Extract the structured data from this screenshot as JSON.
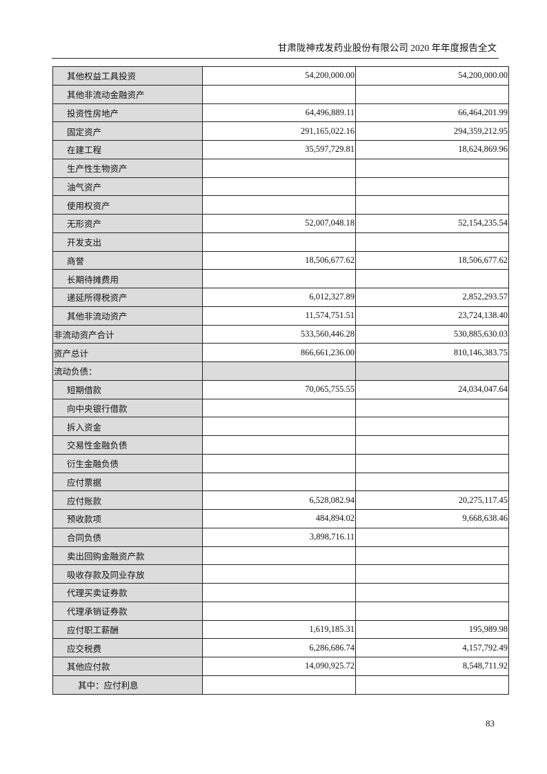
{
  "header": {
    "title": "甘肃陇神戎发药业股份有限公司 2020 年年度报告全文"
  },
  "page_number": "83",
  "table": {
    "rows": [
      {
        "label": "其他权益工具投资",
        "indent": 1,
        "current": "54,200,000.00",
        "previous": "54,200,000.00"
      },
      {
        "label": "其他非流动金融资产",
        "indent": 1,
        "current": "",
        "previous": ""
      },
      {
        "label": "投资性房地产",
        "indent": 1,
        "current": "64,496,889.11",
        "previous": "66,464,201.99"
      },
      {
        "label": "固定资产",
        "indent": 1,
        "current": "291,165,022.16",
        "previous": "294,359,212.95"
      },
      {
        "label": "在建工程",
        "indent": 1,
        "current": "35,597,729.81",
        "previous": "18,624,869.96"
      },
      {
        "label": "生产性生物资产",
        "indent": 1,
        "current": "",
        "previous": ""
      },
      {
        "label": "油气资产",
        "indent": 1,
        "current": "",
        "previous": ""
      },
      {
        "label": "使用权资产",
        "indent": 1,
        "current": "",
        "previous": ""
      },
      {
        "label": "无形资产",
        "indent": 1,
        "current": "52,007,048.18",
        "previous": "52,154,235.54"
      },
      {
        "label": "开发支出",
        "indent": 1,
        "current": "",
        "previous": ""
      },
      {
        "label": "商誉",
        "indent": 1,
        "current": "18,506,677.62",
        "previous": "18,506,677.62"
      },
      {
        "label": "长期待摊费用",
        "indent": 1,
        "current": "",
        "previous": ""
      },
      {
        "label": "递延所得税资产",
        "indent": 1,
        "current": "6,012,327.89",
        "previous": "2,852,293.57"
      },
      {
        "label": "其他非流动资产",
        "indent": 1,
        "current": "11,574,751.51",
        "previous": "23,724,138.40"
      },
      {
        "label": "非流动资产合计",
        "indent": 0,
        "current": "533,560,446.28",
        "previous": "530,885,630.03"
      },
      {
        "label": "资产总计",
        "indent": 0,
        "current": "866,661,236.00",
        "previous": "810,146,383.75"
      },
      {
        "label": "流动负债：",
        "indent": 0,
        "current": "",
        "previous": "",
        "section": true
      },
      {
        "label": "短期借款",
        "indent": 1,
        "current": "70,065,755.55",
        "previous": "24,034,047.64"
      },
      {
        "label": "向中央银行借款",
        "indent": 1,
        "current": "",
        "previous": ""
      },
      {
        "label": "拆入资金",
        "indent": 1,
        "current": "",
        "previous": ""
      },
      {
        "label": "交易性金融负债",
        "indent": 1,
        "current": "",
        "previous": ""
      },
      {
        "label": "衍生金融负债",
        "indent": 1,
        "current": "",
        "previous": ""
      },
      {
        "label": "应付票据",
        "indent": 1,
        "current": "",
        "previous": ""
      },
      {
        "label": "应付账款",
        "indent": 1,
        "current": "6,528,082.94",
        "previous": "20,275,117.45"
      },
      {
        "label": "预收款项",
        "indent": 1,
        "current": "484,894.02",
        "previous": "9,668,638.46"
      },
      {
        "label": "合同负债",
        "indent": 1,
        "current": "3,898,716.11",
        "previous": ""
      },
      {
        "label": "卖出回购金融资产款",
        "indent": 1,
        "current": "",
        "previous": ""
      },
      {
        "label": "吸收存款及同业存放",
        "indent": 1,
        "current": "",
        "previous": ""
      },
      {
        "label": "代理买卖证券款",
        "indent": 1,
        "current": "",
        "previous": ""
      },
      {
        "label": "代理承销证券款",
        "indent": 1,
        "current": "",
        "previous": ""
      },
      {
        "label": "应付职工薪酬",
        "indent": 1,
        "current": "1,619,185.31",
        "previous": "195,989.98"
      },
      {
        "label": "应交税费",
        "indent": 1,
        "current": "6,286,686.74",
        "previous": "4,157,792.49"
      },
      {
        "label": "其他应付款",
        "indent": 1,
        "current": "14,090,925.72",
        "previous": "8,548,711.92"
      },
      {
        "label": "其中：应付利息",
        "indent": 2,
        "current": "",
        "previous": ""
      }
    ]
  }
}
